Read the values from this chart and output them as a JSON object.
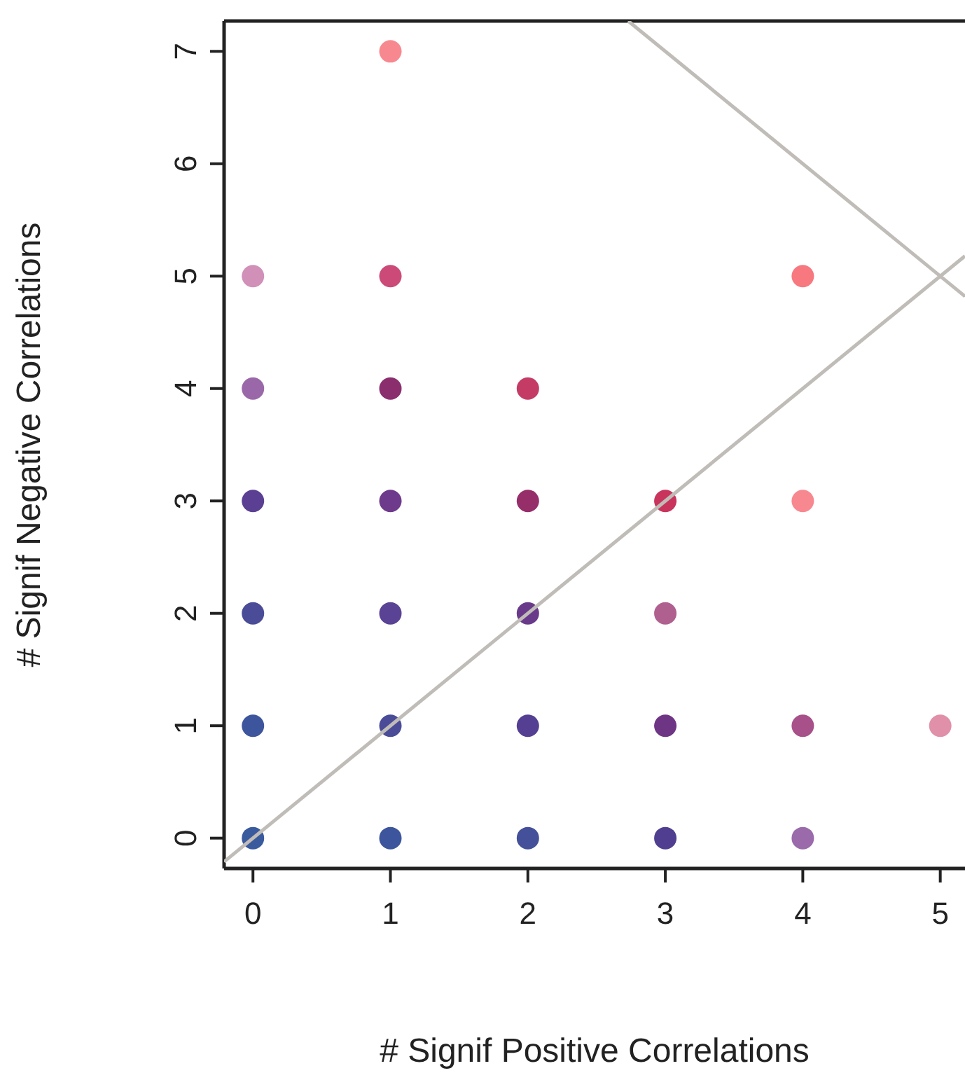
{
  "chart_data": {
    "type": "scatter",
    "xlabel": "# Signif Positive Correlations",
    "ylabel": "# Signif Negative Correlations",
    "xlim": [
      -0.21,
      5.18
    ],
    "ylim": [
      -0.27,
      7.27
    ],
    "xticks": [
      0,
      1,
      2,
      3,
      4,
      5
    ],
    "yticks": [
      0,
      1,
      2,
      3,
      4,
      5,
      6,
      7
    ],
    "grid": false,
    "legend": false,
    "series": [
      {
        "marker": "circle",
        "x": [
          0,
          0,
          0,
          0,
          0,
          0,
          1,
          1,
          1,
          1,
          1,
          1,
          1,
          2,
          2,
          2,
          2,
          2,
          3,
          3,
          3,
          3,
          4,
          4,
          4,
          4,
          5
        ],
        "values": [
          0,
          1,
          2,
          3,
          4,
          5,
          0,
          1,
          2,
          3,
          4,
          5,
          7,
          0,
          1,
          2,
          3,
          4,
          0,
          1,
          2,
          3,
          0,
          1,
          3,
          5,
          1
        ],
        "colors": [
          "#3a5a9e",
          "#3d559c",
          "#4a4c98",
          "#5a3f92",
          "#9a68a8",
          "#d090b8",
          "#3d559c",
          "#4a4c98",
          "#5a4294",
          "#6e3a8c",
          "#8a2e6e",
          "#cc4a78",
          "#f88890",
          "#44509a",
          "#553f92",
          "#6a3a8a",
          "#962e6a",
          "#c43c66",
          "#503f90",
          "#6e3584",
          "#b0608e",
          "#c8345c",
          "#9a6aaa",
          "#a8508a",
          "#f88890",
          "#f87880",
          "#e090a8"
        ]
      },
      {
        "type": "line",
        "marker": "none",
        "color": "#c0bcb8",
        "x": [
          -0.21,
          5.18
        ],
        "values": [
          -0.21,
          5.18
        ]
      },
      {
        "type": "line",
        "marker": "none",
        "color": "#c0bcb8",
        "x": [
          2.73,
          5.18
        ],
        "values": [
          7.27,
          4.82
        ]
      }
    ]
  }
}
